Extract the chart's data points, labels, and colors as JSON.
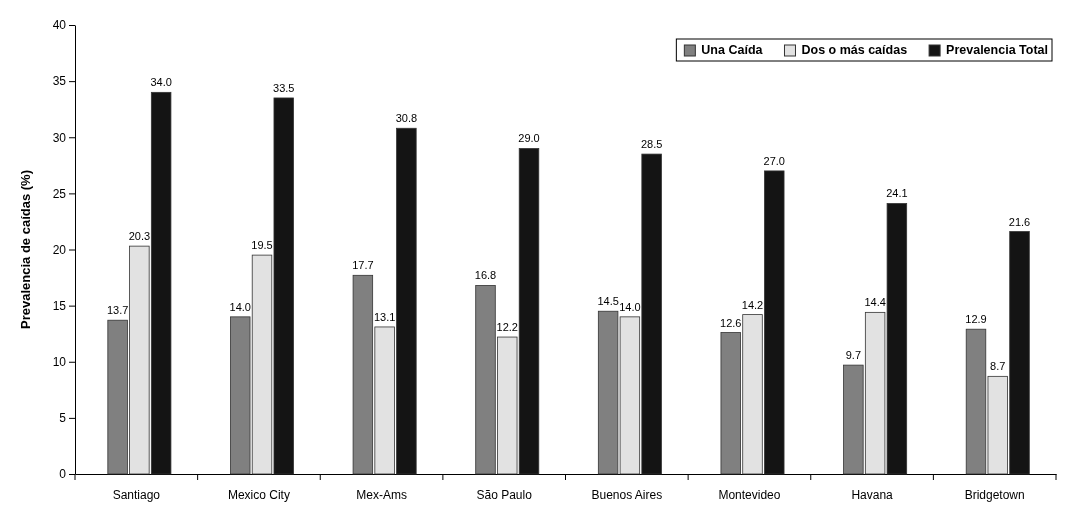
{
  "chart_data": {
    "type": "bar",
    "ylabel": "Prevalencia de caídas (%)",
    "categories": [
      "Santiago",
      "Mexico City",
      "Mex-Ams",
      "São Paulo",
      "Buenos Aires",
      "Montevideo",
      "Havana",
      "Bridgetown"
    ],
    "series": [
      {
        "name": "Una Caída",
        "color": "#808080",
        "values": [
          13.7,
          14.0,
          17.7,
          16.8,
          14.5,
          12.6,
          9.7,
          12.9
        ],
        "value_labels": [
          "13.7",
          "14.0",
          "17.7",
          "16.8",
          "14.5",
          "12.6",
          "9.7",
          "12.9"
        ]
      },
      {
        "name": "Dos o más caídas",
        "color": "#e2e2e2",
        "values": [
          20.3,
          19.5,
          13.1,
          12.2,
          14.0,
          14.2,
          14.4,
          8.7
        ],
        "value_labels": [
          "20.3",
          "19.5",
          "13.1",
          "12.2",
          "14.0",
          "14.2",
          "14.4",
          "8.7"
        ]
      },
      {
        "name": "Prevalencia Total",
        "color": "#141414",
        "values": [
          34.0,
          33.5,
          30.8,
          29.0,
          28.5,
          27.0,
          24.1,
          21.6
        ],
        "value_labels": [
          "34.0",
          "33.5",
          "30.8",
          "29.0",
          "28.5",
          "27.0",
          "24.1",
          "21.6"
        ]
      }
    ],
    "ylim": [
      0,
      40
    ],
    "yticks": [
      0,
      5,
      10,
      15,
      20,
      25,
      30,
      35,
      40
    ],
    "grid": false,
    "legend": "top right"
  }
}
